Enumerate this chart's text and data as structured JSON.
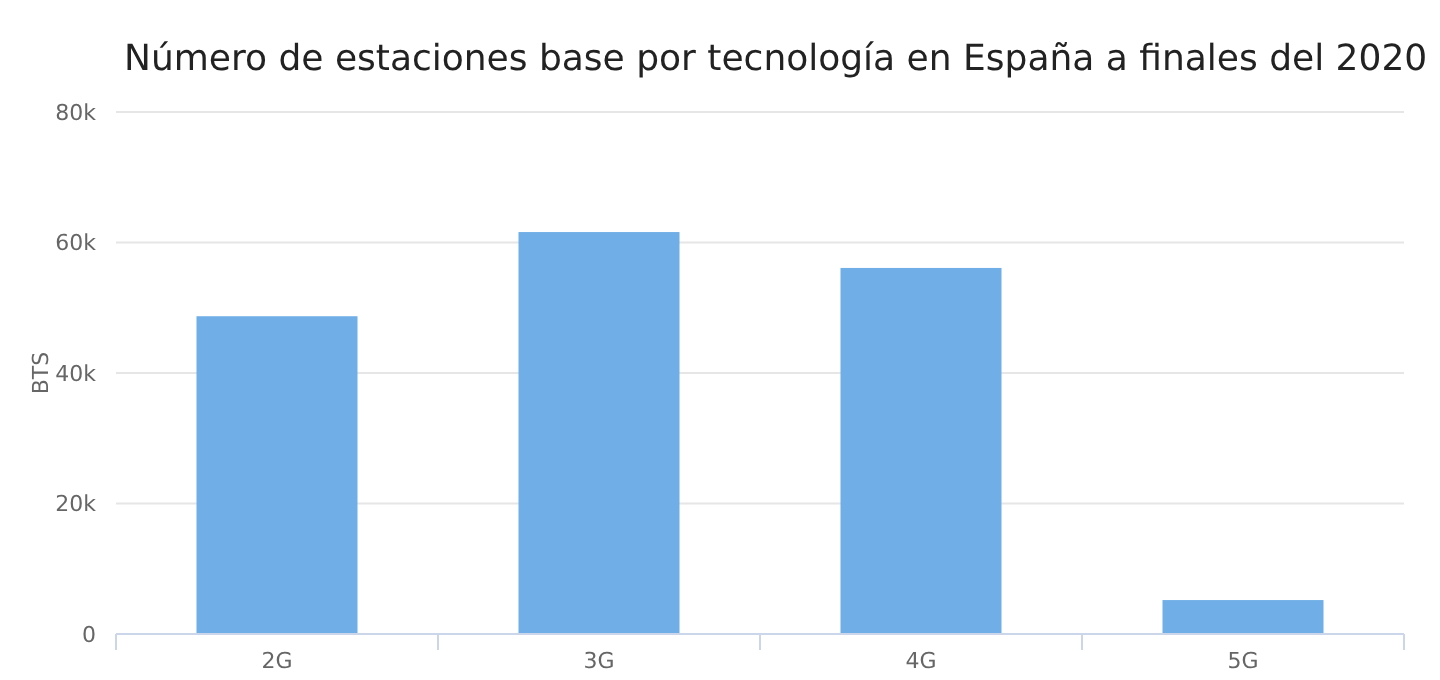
{
  "chart_data": {
    "type": "bar",
    "title": "Número de estaciones base por tecnología en España a finales del 2020",
    "ylabel": "BTS",
    "categories": [
      "2G",
      "3G",
      "4G",
      "5G"
    ],
    "values": [
      48700,
      61600,
      56100,
      5200
    ],
    "color": "#6faee6",
    "ylim": [
      0,
      80000
    ],
    "yticks": [
      {
        "value": 0,
        "label": "0"
      },
      {
        "value": 20000,
        "label": "20k"
      },
      {
        "value": 40000,
        "label": "40k"
      },
      {
        "value": 60000,
        "label": "60k"
      },
      {
        "value": 80000,
        "label": "80k"
      }
    ],
    "grid": "y"
  }
}
